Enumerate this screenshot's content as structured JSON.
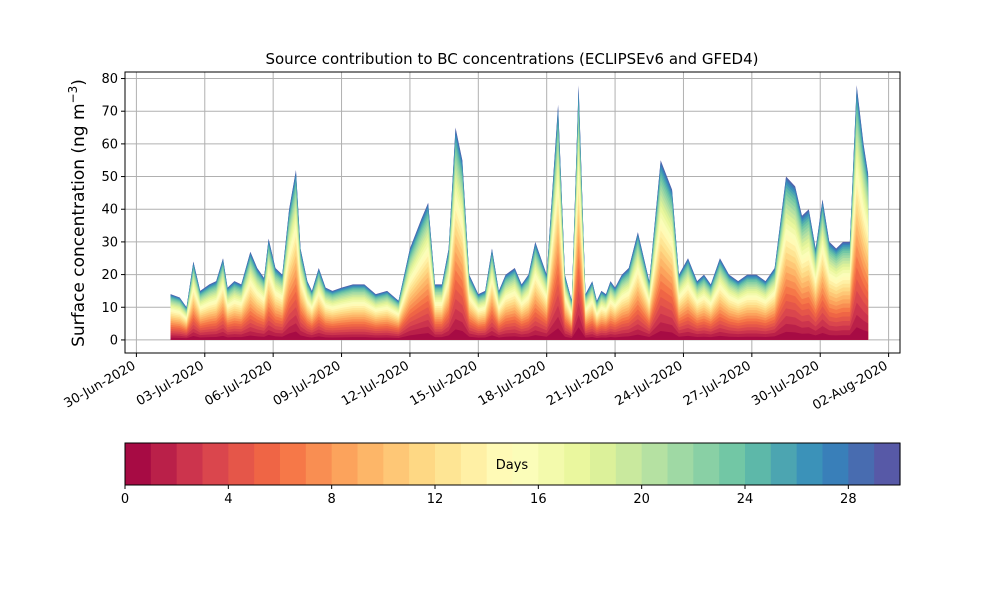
{
  "chart_data": [
    {
      "type": "area",
      "title": "Source contribution to BC concentrations (ECLIPSEv6 and GFED4)",
      "xlabel": "",
      "ylabel": "Surface concentration (ng m",
      "ylabel_sup": "−3",
      "ylabel_close": ")",
      "x_ticks": [
        "30-Jun-2020",
        "03-Jul-2020",
        "06-Jul-2020",
        "09-Jul-2020",
        "12-Jul-2020",
        "15-Jul-2020",
        "18-Jul-2020",
        "21-Jul-2020",
        "24-Jul-2020",
        "27-Jul-2020",
        "30-Jul-2020",
        "02-Aug-2020"
      ],
      "y_ticks": [
        0,
        10,
        20,
        30,
        40,
        50,
        60,
        70,
        80
      ],
      "ylim": [
        -4,
        82
      ],
      "xlim_days_after_30_Jun": [
        -0.5,
        33.5
      ],
      "grid": true,
      "stacking": "stacked by source age (days 0–30), oldest on top",
      "time_days_after_30_Jun": [
        1.5,
        1.9,
        2.2,
        2.5,
        2.8,
        3.2,
        3.5,
        3.8,
        4.0,
        4.3,
        4.6,
        5.0,
        5.3,
        5.6,
        5.8,
        6.1,
        6.4,
        6.7,
        7.0,
        7.2,
        7.5,
        7.7,
        8.0,
        8.3,
        8.6,
        9.0,
        9.5,
        10.0,
        10.5,
        11.0,
        11.5,
        12.0,
        12.5,
        12.8,
        13.1,
        13.4,
        13.7,
        14.0,
        14.3,
        14.6,
        15.0,
        15.3,
        15.6,
        15.9,
        16.2,
        16.6,
        16.9,
        17.2,
        17.5,
        18.0,
        18.5,
        18.8,
        19.1,
        19.4,
        19.7,
        20.0,
        20.2,
        20.4,
        20.6,
        20.8,
        21.0,
        21.3,
        21.6,
        22.0,
        22.5,
        23.0,
        23.5,
        23.8,
        24.2,
        24.6,
        24.9,
        25.2,
        25.6,
        26.0,
        26.4,
        26.8,
        27.2,
        27.6,
        28.0,
        28.5,
        28.9,
        29.2,
        29.5,
        29.8,
        30.1,
        30.4,
        30.7,
        31.0,
        31.3,
        31.6,
        31.9,
        32.1
      ],
      "total_values": [
        14,
        13,
        10,
        24,
        15,
        17,
        18,
        25,
        16,
        18,
        17,
        27,
        22,
        19,
        31,
        22,
        20,
        40,
        52,
        28,
        18,
        15,
        22,
        16,
        15,
        16,
        17,
        17,
        14,
        15,
        12,
        28,
        37,
        42,
        17,
        17,
        28,
        65,
        55,
        20,
        14,
        15,
        28,
        15,
        20,
        22,
        17,
        20,
        30,
        20,
        72,
        20,
        12,
        78,
        14,
        18,
        12,
        15,
        14,
        18,
        16,
        20,
        22,
        33,
        18,
        55,
        46,
        20,
        25,
        18,
        20,
        17,
        25,
        20,
        18,
        20,
        20,
        18,
        22,
        50,
        47,
        38,
        40,
        28,
        43,
        30,
        28,
        30,
        30,
        78,
        60,
        51
      ],
      "colorbar": {
        "label": "Days",
        "ticks": [
          0,
          4,
          8,
          12,
          16,
          20,
          24,
          28
        ],
        "range": [
          0,
          30
        ],
        "levels": 30,
        "colormap": "Spectral",
        "stops": [
          "#9e0142",
          "#d53e4f",
          "#f46d43",
          "#fdae61",
          "#fee08b",
          "#ffffbf",
          "#e6f598",
          "#abdda4",
          "#66c2a5",
          "#3288bd",
          "#5e4fa2"
        ]
      }
    }
  ]
}
